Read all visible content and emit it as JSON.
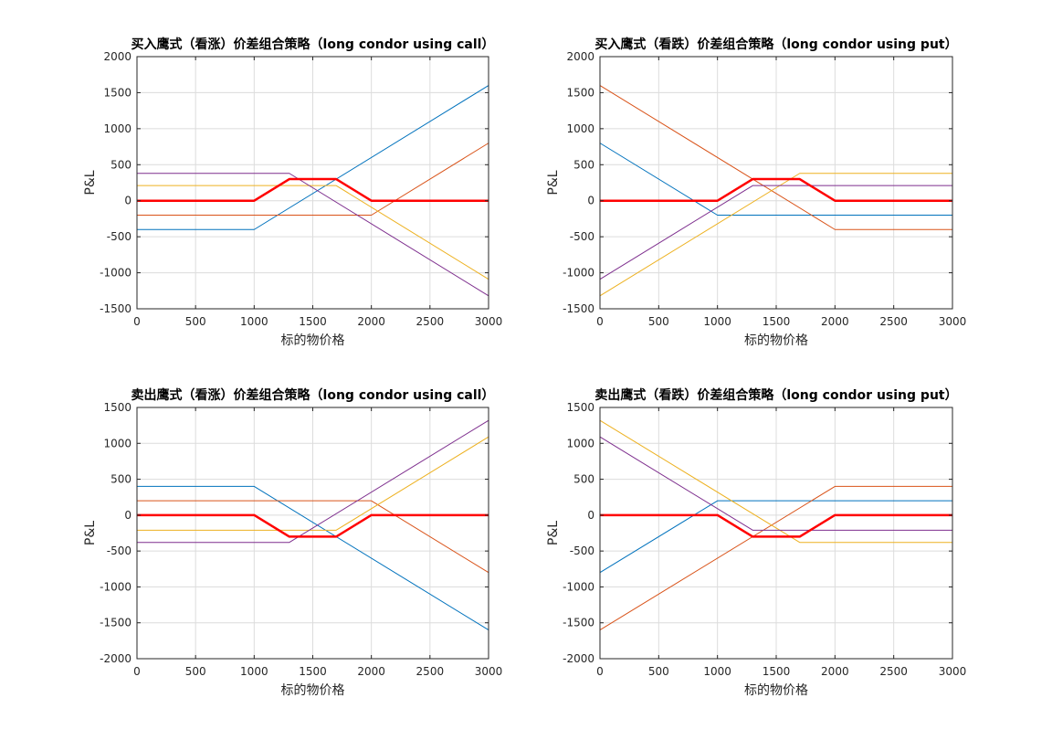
{
  "window": {
    "background": "#ffffff"
  },
  "style": {
    "grid_color": "#dcdcdc",
    "axis_color": "#262626"
  },
  "chart_data": [
    {
      "type": "line",
      "title": "买入鹰式（看涨）价差组合策略（long condor using call）",
      "xlabel": "标的物价格",
      "ylabel": "P&L",
      "xlim": [
        0,
        3000
      ],
      "ylim": [
        -1500,
        2000
      ],
      "xticks": [
        0,
        500,
        1000,
        1500,
        2000,
        2500,
        3000
      ],
      "yticks": [
        -1500,
        -1000,
        -500,
        0,
        500,
        1000,
        1500,
        2000
      ],
      "grid": true,
      "series": [
        {
          "color": "#0072BD",
          "width": 1,
          "x": [
            0,
            1000,
            3000
          ],
          "y": [
            -400,
            -400,
            1600
          ]
        },
        {
          "color": "#D95319",
          "width": 1,
          "x": [
            0,
            2000,
            3000
          ],
          "y": [
            -200,
            -200,
            800
          ]
        },
        {
          "color": "#EDB120",
          "width": 1,
          "x": [
            0,
            1700,
            3000
          ],
          "y": [
            210,
            210,
            -1090
          ]
        },
        {
          "color": "#7E2F8E",
          "width": 1,
          "x": [
            0,
            1300,
            3000
          ],
          "y": [
            380,
            380,
            -1320
          ]
        },
        {
          "color": "#FF0000",
          "width": 2.5,
          "x": [
            0,
            1000,
            1300,
            1700,
            2000,
            3000
          ],
          "y": [
            0,
            0,
            300,
            300,
            0,
            0
          ]
        }
      ]
    },
    {
      "type": "line",
      "title": "买入鹰式（看跌）价差组合策略（long condor using put）",
      "xlabel": "标的物价格",
      "ylabel": "P&L",
      "xlim": [
        0,
        3000
      ],
      "ylim": [
        -1500,
        2000
      ],
      "xticks": [
        0,
        500,
        1000,
        1500,
        2000,
        2500,
        3000
      ],
      "yticks": [
        -1500,
        -1000,
        -500,
        0,
        500,
        1000,
        1500,
        2000
      ],
      "grid": true,
      "series": [
        {
          "color": "#0072BD",
          "width": 1,
          "x": [
            0,
            1000,
            3000
          ],
          "y": [
            800,
            -200,
            -200
          ]
        },
        {
          "color": "#D95319",
          "width": 1,
          "x": [
            0,
            2000,
            3000
          ],
          "y": [
            1600,
            -400,
            -400
          ]
        },
        {
          "color": "#EDB120",
          "width": 1,
          "x": [
            0,
            1700,
            3000
          ],
          "y": [
            -1320,
            380,
            380
          ]
        },
        {
          "color": "#7E2F8E",
          "width": 1,
          "x": [
            0,
            1300,
            3000
          ],
          "y": [
            -1090,
            210,
            210
          ]
        },
        {
          "color": "#FF0000",
          "width": 2.5,
          "x": [
            0,
            1000,
            1300,
            1700,
            2000,
            3000
          ],
          "y": [
            0,
            0,
            300,
            300,
            0,
            0
          ]
        }
      ]
    },
    {
      "type": "line",
      "title": "卖出鹰式（看涨）价差组合策略（long condor using call）",
      "xlabel": "标的物价格",
      "ylabel": "P&L",
      "xlim": [
        0,
        3000
      ],
      "ylim": [
        -2000,
        1500
      ],
      "xticks": [
        0,
        500,
        1000,
        1500,
        2000,
        2500,
        3000
      ],
      "yticks": [
        -2000,
        -1500,
        -1000,
        -500,
        0,
        500,
        1000,
        1500
      ],
      "grid": true,
      "series": [
        {
          "color": "#0072BD",
          "width": 1,
          "x": [
            0,
            1000,
            3000
          ],
          "y": [
            400,
            400,
            -1600
          ]
        },
        {
          "color": "#D95319",
          "width": 1,
          "x": [
            0,
            2000,
            3000
          ],
          "y": [
            200,
            200,
            -800
          ]
        },
        {
          "color": "#EDB120",
          "width": 1,
          "x": [
            0,
            1700,
            3000
          ],
          "y": [
            -210,
            -210,
            1090
          ]
        },
        {
          "color": "#7E2F8E",
          "width": 1,
          "x": [
            0,
            1300,
            3000
          ],
          "y": [
            -380,
            -380,
            1320
          ]
        },
        {
          "color": "#FF0000",
          "width": 2.5,
          "x": [
            0,
            1000,
            1300,
            1700,
            2000,
            3000
          ],
          "y": [
            0,
            0,
            -300,
            -300,
            0,
            0
          ]
        }
      ]
    },
    {
      "type": "line",
      "title": "卖出鹰式（看跌）价差组合策略（long condor using put）",
      "xlabel": "标的物价格",
      "ylabel": "P&L",
      "xlim": [
        0,
        3000
      ],
      "ylim": [
        -2000,
        1500
      ],
      "xticks": [
        0,
        500,
        1000,
        1500,
        2000,
        2500,
        3000
      ],
      "yticks": [
        -2000,
        -1500,
        -1000,
        -500,
        0,
        500,
        1000,
        1500
      ],
      "grid": true,
      "series": [
        {
          "color": "#0072BD",
          "width": 1,
          "x": [
            0,
            1000,
            3000
          ],
          "y": [
            -800,
            200,
            200
          ]
        },
        {
          "color": "#D95319",
          "width": 1,
          "x": [
            0,
            2000,
            3000
          ],
          "y": [
            -1600,
            400,
            400
          ]
        },
        {
          "color": "#EDB120",
          "width": 1,
          "x": [
            0,
            1700,
            3000
          ],
          "y": [
            1320,
            -380,
            -380
          ]
        },
        {
          "color": "#7E2F8E",
          "width": 1,
          "x": [
            0,
            1300,
            3000
          ],
          "y": [
            1090,
            -210,
            -210
          ]
        },
        {
          "color": "#FF0000",
          "width": 2.5,
          "x": [
            0,
            1000,
            1300,
            1700,
            2000,
            3000
          ],
          "y": [
            0,
            0,
            -300,
            -300,
            0,
            0
          ]
        }
      ]
    }
  ]
}
